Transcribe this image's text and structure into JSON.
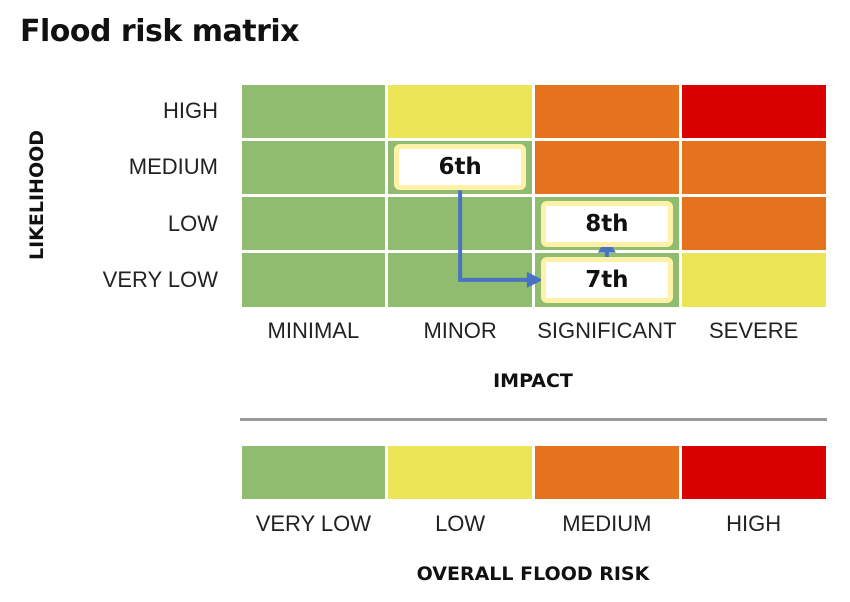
{
  "title": "Flood risk matrix",
  "matrix": {
    "y_axis_title": "LIKELIHOOD",
    "x_axis_title": "IMPACT",
    "rows": [
      "HIGH",
      "MEDIUM",
      "LOW",
      "VERY LOW"
    ],
    "columns": [
      "MINIMAL",
      "MINOR",
      "SIGNIFICANT",
      "SEVERE"
    ],
    "cell_risk": [
      [
        "green",
        "yellow",
        "orange",
        "red"
      ],
      [
        "green",
        "green",
        "orange",
        "orange"
      ],
      [
        "green",
        "green",
        "green",
        "orange"
      ],
      [
        "green",
        "green",
        "green",
        "yellow"
      ]
    ]
  },
  "colors": {
    "green": "#8fbc6e",
    "yellow": "#ece558",
    "orange": "#e5721c",
    "red": "#d90000",
    "marker_border": "#fff2a8",
    "arrow": "#4a72c4"
  },
  "markers": [
    {
      "label": "6th",
      "likelihood": "MEDIUM",
      "impact": "MINOR"
    },
    {
      "label": "8th",
      "likelihood": "LOW",
      "impact": "SIGNIFICANT"
    },
    {
      "label": "7th",
      "likelihood": "VERY LOW",
      "impact": "SIGNIFICANT"
    }
  ],
  "arrows": [
    {
      "from": "6th",
      "to": "7th"
    },
    {
      "from": "7th",
      "to": "8th"
    }
  ],
  "legend": {
    "title": "OVERALL FLOOD RISK",
    "items": [
      {
        "label": "VERY LOW",
        "color": "green"
      },
      {
        "label": "LOW",
        "color": "yellow"
      },
      {
        "label": "MEDIUM",
        "color": "orange"
      },
      {
        "label": "HIGH",
        "color": "red"
      }
    ]
  }
}
